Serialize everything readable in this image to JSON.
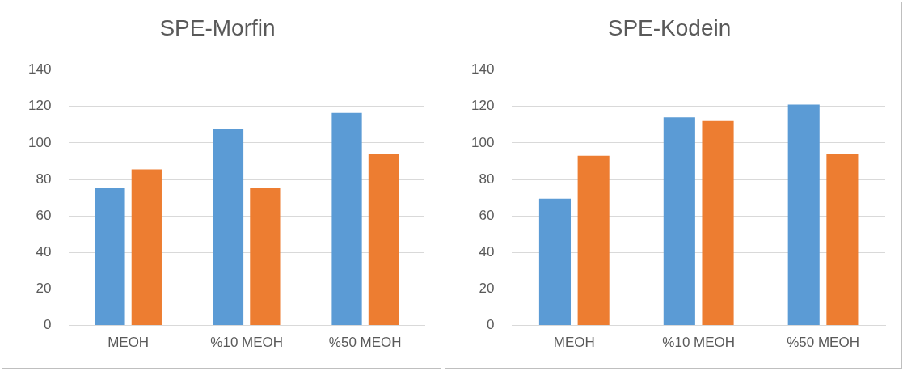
{
  "chart_data": [
    {
      "type": "bar",
      "title": "SPE-Morfin",
      "categories": [
        "MEOH",
        "%10 MEOH",
        "%50 MEOH"
      ],
      "series": [
        {
          "color": "#5b9bd5",
          "values": [
            75.5,
            107.5,
            116.5
          ]
        },
        {
          "color": "#ed7d31",
          "values": [
            85.5,
            75.5,
            94
          ]
        }
      ],
      "ylim": [
        0,
        140
      ],
      "yticks": [
        0,
        20,
        40,
        60,
        80,
        100,
        120,
        140
      ],
      "grid": "y",
      "legend": false
    },
    {
      "type": "bar",
      "title": "SPE-Kodein",
      "categories": [
        "MEOH",
        "%10 MEOH",
        "%50 MEOH"
      ],
      "series": [
        {
          "color": "#5b9bd5",
          "values": [
            69.5,
            114,
            121
          ]
        },
        {
          "color": "#ed7d31",
          "values": [
            93,
            112,
            94
          ]
        }
      ],
      "ylim": [
        0,
        140
      ],
      "yticks": [
        0,
        20,
        40,
        60,
        80,
        100,
        120,
        140
      ],
      "grid": "y",
      "legend": false
    }
  ]
}
